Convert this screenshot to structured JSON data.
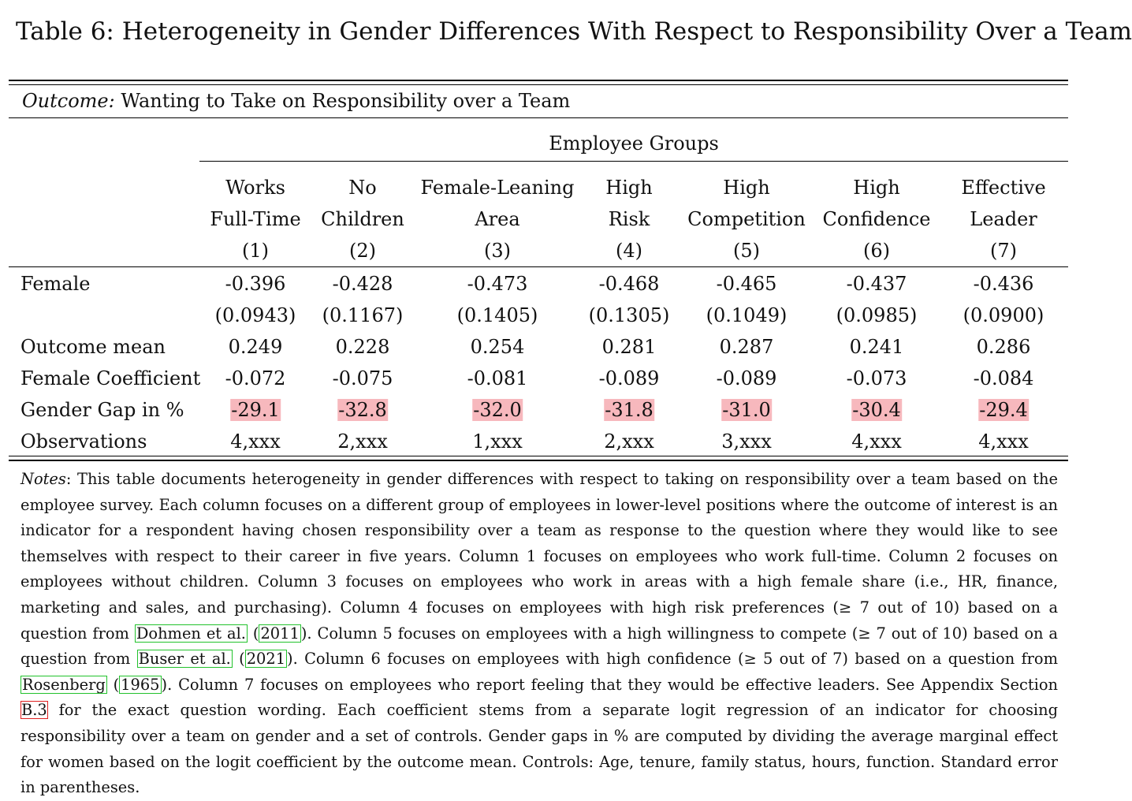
{
  "title": "Table 6: Heterogeneity in Gender Differences With Respect to Responsibility Over a Team",
  "outcome": {
    "prefix": "Outcome:",
    "text": "Wanting to Take on Responsibility over a Team"
  },
  "group_header": "Employee Groups",
  "columns": [
    {
      "line1": "Works",
      "line2": "Full-Time",
      "num": "(1)"
    },
    {
      "line1": "No",
      "line2": "Children",
      "num": "(2)"
    },
    {
      "line1": "Female-Leaning",
      "line2": "Area",
      "num": "(3)"
    },
    {
      "line1": "High",
      "line2": "Risk",
      "num": "(4)"
    },
    {
      "line1": "High",
      "line2": "Competition",
      "num": "(5)"
    },
    {
      "line1": "High",
      "line2": "Confidence",
      "num": "(6)"
    },
    {
      "line1": "Effective",
      "line2": "Leader",
      "num": "(7)"
    }
  ],
  "rows": [
    {
      "label": "Female",
      "values": [
        "-0.396",
        "-0.428",
        "-0.473",
        "-0.468",
        "-0.465",
        "-0.437",
        "-0.436"
      ]
    },
    {
      "label": "",
      "values": [
        "(0.0943)",
        "(0.1167)",
        "(0.1405)",
        "(0.1305)",
        "(0.1049)",
        "(0.0985)",
        "(0.0900)"
      ]
    },
    {
      "label": "Outcome mean",
      "values": [
        "0.249",
        "0.228",
        "0.254",
        "0.281",
        "0.287",
        "0.241",
        "0.286"
      ]
    },
    {
      "label": "Female Coefficient",
      "values": [
        "-0.072",
        "-0.075",
        "-0.081",
        "-0.089",
        "-0.089",
        "-0.073",
        "-0.084"
      ]
    },
    {
      "label": "Gender Gap in %",
      "values": [
        "-29.1",
        "-32.8",
        "-32.0",
        "-31.8",
        "-31.0",
        "-30.4",
        "-29.4"
      ],
      "highlight": true
    },
    {
      "label": "Observations",
      "values": [
        "4,xxx",
        "2,xxx",
        "1,xxx",
        "2,xxx",
        "3,xxx",
        "4,xxx",
        "4,xxx"
      ]
    }
  ],
  "notes": {
    "label": "Notes",
    "p1": ": This table documents heterogeneity in gender differences with respect to taking on responsibility over a team based on the employee survey. Each column focuses on a different group of employees in lower-level positions where the outcome of interest is an indicator for a respondent having chosen responsibility over a team as response to the question where they would like to see themselves with respect to their career in five years. Column 1 focuses on employees who work full-time. Column 2 focuses on employees without children. Column 3 focuses on employees who work in areas with a high female share (i.e., HR, finance, marketing and sales, and purchasing). Column 4 focuses on employees with high risk preferences (≥ 7 out of 10) based on a question from ",
    "cite1_name": "Dohmen et al.",
    "cite1_year": "2011",
    "p2": ". Column 5 focuses on employees with a high willingness to compete (≥ 7 out of 10) based on a question from ",
    "cite2_name": "Buser et al.",
    "cite2_year": "2021",
    "p3": ". Column 6 focuses on employees with high confidence (≥ 5 out of 7) based on a question from ",
    "cite3_name": "Rosenberg",
    "cite3_year": "1965",
    "p4": ". Column 7 focuses on employees who report feeling that they would be effective leaders. See Appendix Section ",
    "appendix_ref": "B.3",
    "p5": " for the exact question wording. Each coefficient stems from a separate logit regression of an indicator for choosing responsibility over a team on gender and a set of controls. Gender gaps in % are computed by dividing the average marginal effect for women based on the logit coefficient by the outcome mean. Controls: Age, tenure, family status, hours, function. Standard error in parentheses."
  },
  "colors": {
    "highlight": "#f7b8bd",
    "cite_green": "#22c22c",
    "cite_red": "#e02020"
  }
}
